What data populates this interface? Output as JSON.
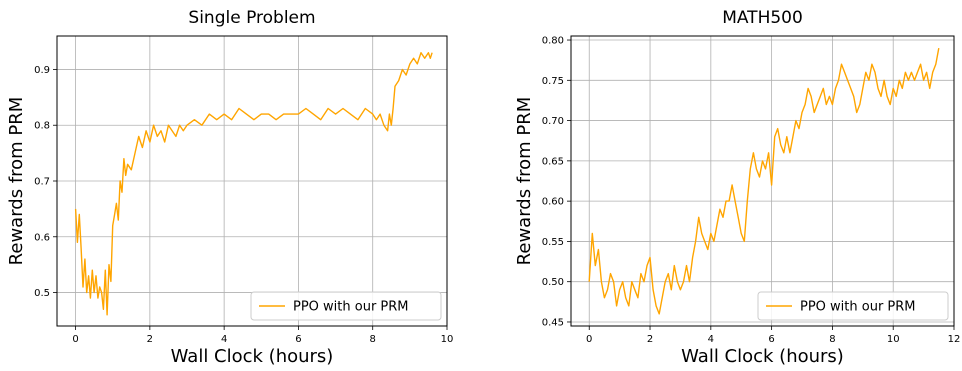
{
  "chart_data": [
    {
      "type": "line",
      "title": "Single Problem",
      "xlabel": "Wall Clock (hours)",
      "ylabel": "Rewards from PRM",
      "xlim": [
        -0.5,
        10.0
      ],
      "ylim": [
        0.44,
        0.96
      ],
      "xticks": [
        0,
        2,
        4,
        6,
        8,
        10
      ],
      "xtick_labels": [
        "0",
        "2",
        "4",
        "6",
        "8",
        "10"
      ],
      "yticks": [
        0.5,
        0.6,
        0.7,
        0.8,
        0.9
      ],
      "ytick_labels": [
        "0.5",
        "0.6",
        "0.7",
        "0.8",
        "0.9"
      ],
      "grid": true,
      "legend": "bottom-right",
      "series": [
        {
          "name": "PPO with our PRM",
          "color": "#ffa500",
          "x": [
            0.0,
            0.05,
            0.1,
            0.15,
            0.2,
            0.25,
            0.3,
            0.35,
            0.4,
            0.45,
            0.5,
            0.55,
            0.6,
            0.65,
            0.7,
            0.75,
            0.8,
            0.85,
            0.9,
            0.95,
            1.0,
            1.05,
            1.1,
            1.15,
            1.2,
            1.25,
            1.3,
            1.35,
            1.4,
            1.5,
            1.6,
            1.7,
            1.8,
            1.9,
            2.0,
            2.1,
            2.2,
            2.3,
            2.4,
            2.5,
            2.6,
            2.7,
            2.8,
            2.9,
            3.0,
            3.2,
            3.4,
            3.6,
            3.8,
            4.0,
            4.2,
            4.4,
            4.6,
            4.8,
            5.0,
            5.2,
            5.4,
            5.6,
            5.8,
            6.0,
            6.2,
            6.4,
            6.6,
            6.8,
            7.0,
            7.2,
            7.4,
            7.6,
            7.8,
            8.0,
            8.1,
            8.2,
            8.3,
            8.4,
            8.45,
            8.5,
            8.55,
            8.6,
            8.7,
            8.8,
            8.9,
            9.0,
            9.1,
            9.2,
            9.3,
            9.4,
            9.5,
            9.55,
            9.6
          ],
          "values": [
            0.65,
            0.59,
            0.64,
            0.58,
            0.51,
            0.56,
            0.5,
            0.53,
            0.49,
            0.54,
            0.5,
            0.53,
            0.49,
            0.51,
            0.5,
            0.47,
            0.54,
            0.46,
            0.55,
            0.52,
            0.62,
            0.64,
            0.66,
            0.63,
            0.7,
            0.68,
            0.74,
            0.71,
            0.73,
            0.72,
            0.75,
            0.78,
            0.76,
            0.79,
            0.77,
            0.8,
            0.78,
            0.79,
            0.77,
            0.8,
            0.79,
            0.78,
            0.8,
            0.79,
            0.8,
            0.81,
            0.8,
            0.82,
            0.81,
            0.82,
            0.81,
            0.83,
            0.82,
            0.81,
            0.82,
            0.82,
            0.81,
            0.82,
            0.82,
            0.82,
            0.83,
            0.82,
            0.81,
            0.83,
            0.82,
            0.83,
            0.82,
            0.81,
            0.83,
            0.82,
            0.81,
            0.82,
            0.8,
            0.79,
            0.82,
            0.8,
            0.83,
            0.87,
            0.88,
            0.9,
            0.89,
            0.91,
            0.92,
            0.91,
            0.93,
            0.92,
            0.93,
            0.92,
            0.93
          ]
        }
      ]
    },
    {
      "type": "line",
      "title": "MATH500",
      "xlabel": "Wall Clock (hours)",
      "ylabel": "Rewards from PRM",
      "xlim": [
        -0.6,
        12.0
      ],
      "ylim": [
        0.445,
        0.805
      ],
      "xticks": [
        0,
        2,
        4,
        6,
        8,
        10,
        12
      ],
      "xtick_labels": [
        "0",
        "2",
        "4",
        "6",
        "8",
        "10",
        "12"
      ],
      "yticks": [
        0.45,
        0.5,
        0.55,
        0.6,
        0.65,
        0.7,
        0.75,
        0.8
      ],
      "ytick_labels": [
        "0.45",
        "0.50",
        "0.55",
        "0.60",
        "0.65",
        "0.70",
        "0.75",
        "0.80"
      ],
      "grid": true,
      "legend": "bottom-right",
      "series": [
        {
          "name": "PPO with our PRM",
          "color": "#ffa500",
          "x": [
            0.0,
            0.1,
            0.2,
            0.3,
            0.4,
            0.5,
            0.6,
            0.7,
            0.8,
            0.9,
            1.0,
            1.1,
            1.2,
            1.3,
            1.4,
            1.5,
            1.6,
            1.7,
            1.8,
            1.9,
            2.0,
            2.1,
            2.2,
            2.3,
            2.4,
            2.5,
            2.6,
            2.7,
            2.8,
            2.9,
            3.0,
            3.1,
            3.2,
            3.3,
            3.4,
            3.5,
            3.6,
            3.7,
            3.8,
            3.9,
            4.0,
            4.1,
            4.2,
            4.3,
            4.4,
            4.5,
            4.6,
            4.7,
            4.8,
            4.9,
            5.0,
            5.1,
            5.2,
            5.3,
            5.4,
            5.5,
            5.6,
            5.7,
            5.8,
            5.9,
            6.0,
            6.1,
            6.2,
            6.3,
            6.4,
            6.5,
            6.6,
            6.7,
            6.8,
            6.9,
            7.0,
            7.1,
            7.2,
            7.3,
            7.4,
            7.5,
            7.6,
            7.7,
            7.8,
            7.9,
            8.0,
            8.1,
            8.2,
            8.3,
            8.4,
            8.5,
            8.6,
            8.7,
            8.8,
            8.9,
            9.0,
            9.1,
            9.2,
            9.3,
            9.4,
            9.5,
            9.6,
            9.7,
            9.8,
            9.9,
            10.0,
            10.1,
            10.2,
            10.3,
            10.4,
            10.5,
            10.6,
            10.7,
            10.8,
            10.9,
            11.0,
            11.1,
            11.2,
            11.3,
            11.4,
            11.5
          ],
          "values": [
            0.5,
            0.56,
            0.52,
            0.54,
            0.5,
            0.48,
            0.49,
            0.51,
            0.5,
            0.47,
            0.49,
            0.5,
            0.48,
            0.47,
            0.5,
            0.49,
            0.48,
            0.51,
            0.5,
            0.52,
            0.53,
            0.49,
            0.47,
            0.46,
            0.48,
            0.5,
            0.51,
            0.49,
            0.52,
            0.5,
            0.49,
            0.5,
            0.52,
            0.5,
            0.53,
            0.55,
            0.58,
            0.56,
            0.55,
            0.54,
            0.56,
            0.55,
            0.57,
            0.59,
            0.58,
            0.6,
            0.6,
            0.62,
            0.6,
            0.58,
            0.56,
            0.55,
            0.6,
            0.64,
            0.66,
            0.64,
            0.63,
            0.65,
            0.64,
            0.66,
            0.62,
            0.68,
            0.69,
            0.67,
            0.66,
            0.68,
            0.66,
            0.68,
            0.7,
            0.69,
            0.71,
            0.72,
            0.74,
            0.73,
            0.71,
            0.72,
            0.73,
            0.74,
            0.72,
            0.73,
            0.72,
            0.74,
            0.75,
            0.77,
            0.76,
            0.75,
            0.74,
            0.73,
            0.71,
            0.72,
            0.74,
            0.76,
            0.75,
            0.77,
            0.76,
            0.74,
            0.73,
            0.75,
            0.73,
            0.72,
            0.74,
            0.73,
            0.75,
            0.74,
            0.76,
            0.75,
            0.76,
            0.75,
            0.76,
            0.77,
            0.75,
            0.76,
            0.74,
            0.76,
            0.77,
            0.79
          ]
        }
      ]
    }
  ]
}
